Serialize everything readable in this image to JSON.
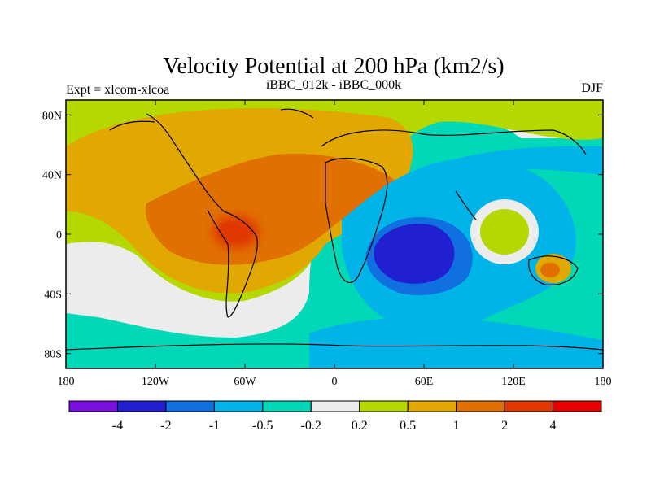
{
  "chart_data": {
    "type": "heatmap",
    "title": "Velocity Potential at 200 hPa (km2/s)",
    "subtitle_left": "Expt = xlcom-xlcoa",
    "subtitle_center": "iBBC_012k - iBBC_000k",
    "subtitle_right": "DJF",
    "x_ticks": [
      {
        "value": -180,
        "label": "180"
      },
      {
        "value": -120,
        "label": "120W"
      },
      {
        "value": -60,
        "label": "60W"
      },
      {
        "value": 0,
        "label": "0"
      },
      {
        "value": 60,
        "label": "60E"
      },
      {
        "value": 120,
        "label": "120E"
      },
      {
        "value": 180,
        "label": "180"
      }
    ],
    "y_ticks": [
      {
        "value": 80,
        "label": "80N"
      },
      {
        "value": 40,
        "label": "40N"
      },
      {
        "value": 0,
        "label": "0"
      },
      {
        "value": -40,
        "label": "40S"
      },
      {
        "value": -80,
        "label": "80S"
      }
    ],
    "xlim": [
      -180,
      180
    ],
    "ylim": [
      -90,
      90
    ],
    "colorbar": {
      "colors": [
        "#7a10e0",
        "#2020d0",
        "#1070e0",
        "#00b4e8",
        "#00d8b8",
        "#ececec",
        "#b4d800",
        "#e0a800",
        "#e07000",
        "#e03800",
        "#e80000"
      ],
      "labels": [
        "-4",
        "-2",
        "-1",
        "-0.5",
        "-0.2",
        "0.2",
        "0.5",
        "1",
        "2",
        "4"
      ],
      "levels": [
        -4,
        -2,
        -1,
        -0.5,
        -0.2,
        0.2,
        0.5,
        1,
        2,
        4
      ]
    },
    "features": [
      {
        "name": "South America upper-level high",
        "lon": -70,
        "lat": 0,
        "level": "2 to 4"
      },
      {
        "name": "Atlantic / Africa positive band",
        "lon": -30,
        "lat": 25,
        "level": "1 to 2"
      },
      {
        "name": "Indian Ocean low",
        "lon": 50,
        "lat": -10,
        "level": "-4 to -2"
      },
      {
        "name": "Southern Ocean negative band",
        "lon": 60,
        "lat": -60,
        "level": "-0.5 to -0.2"
      }
    ]
  }
}
